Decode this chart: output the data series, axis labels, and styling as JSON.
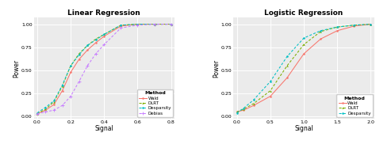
{
  "title_left": "Linear Regression",
  "title_right": "Logistic Regression",
  "xlabel": "Signal",
  "ylabel": "Power",
  "bg_color": "#EBEBEB",
  "grid_color": "#FFFFFF",
  "left": {
    "x": [
      0.0,
      0.05,
      0.1,
      0.15,
      0.2,
      0.25,
      0.3,
      0.35,
      0.4,
      0.5,
      0.6,
      0.7,
      0.8
    ],
    "wald": [
      0.03,
      0.07,
      0.13,
      0.28,
      0.48,
      0.62,
      0.72,
      0.8,
      0.87,
      0.98,
      1.0,
      1.0,
      1.0
    ],
    "dlrt": [
      0.03,
      0.08,
      0.16,
      0.33,
      0.55,
      0.68,
      0.77,
      0.84,
      0.89,
      0.99,
      1.0,
      1.0,
      1.0
    ],
    "desparsity": [
      0.04,
      0.1,
      0.17,
      0.34,
      0.55,
      0.67,
      0.77,
      0.83,
      0.89,
      0.99,
      1.0,
      1.0,
      1.0
    ],
    "debias": [
      0.03,
      0.05,
      0.07,
      0.12,
      0.22,
      0.38,
      0.55,
      0.68,
      0.78,
      0.96,
      0.99,
      1.0,
      1.0
    ],
    "xlim": [
      -0.02,
      0.82
    ],
    "ylim": [
      -0.02,
      1.07
    ],
    "xticks": [
      0.0,
      0.2,
      0.4,
      0.6,
      0.8
    ],
    "yticks": [
      0.0,
      0.25,
      0.5,
      0.75,
      1.0
    ],
    "xticklabels": [
      "0.0",
      "0.2",
      "0.4",
      "0.6",
      "0.8"
    ],
    "yticklabels": [
      "0.00",
      "0.25",
      "0.50",
      "0.75",
      "1.00"
    ]
  },
  "right": {
    "x": [
      0.0,
      0.1,
      0.25,
      0.5,
      0.75,
      1.0,
      1.25,
      1.5,
      1.75,
      2.0
    ],
    "wald": [
      0.05,
      0.07,
      0.12,
      0.22,
      0.42,
      0.68,
      0.84,
      0.93,
      0.98,
      1.0
    ],
    "dlrt": [
      0.05,
      0.08,
      0.14,
      0.28,
      0.55,
      0.78,
      0.92,
      0.97,
      0.99,
      1.0
    ],
    "desparsity": [
      0.04,
      0.09,
      0.18,
      0.38,
      0.65,
      0.85,
      0.93,
      0.97,
      0.99,
      1.0
    ],
    "xlim": [
      -0.05,
      2.05
    ],
    "ylim": [
      -0.02,
      1.07
    ],
    "xticks": [
      0.0,
      0.5,
      1.0,
      1.5,
      2.0
    ],
    "yticks": [
      0.0,
      0.25,
      0.5,
      0.75,
      1.0
    ],
    "xticklabels": [
      "0.0",
      "0.5",
      "1.0",
      "1.5",
      "2.0"
    ],
    "yticklabels": [
      "0.00",
      "0.25",
      "0.50",
      "0.75",
      "1.00"
    ]
  },
  "colors": {
    "wald": "#F8766D",
    "dlrt": "#7CAE00",
    "desparsity": "#00BFC4",
    "debias": "#C77CFF"
  },
  "lw": 0.75,
  "ms": 1.8,
  "legend_title": "Method",
  "legend_labels": [
    "Wald",
    "DLRT",
    "Desparsity",
    "Debias"
  ],
  "legend_labels_right": [
    "Wald",
    "DLRT",
    "Desparsity"
  ]
}
